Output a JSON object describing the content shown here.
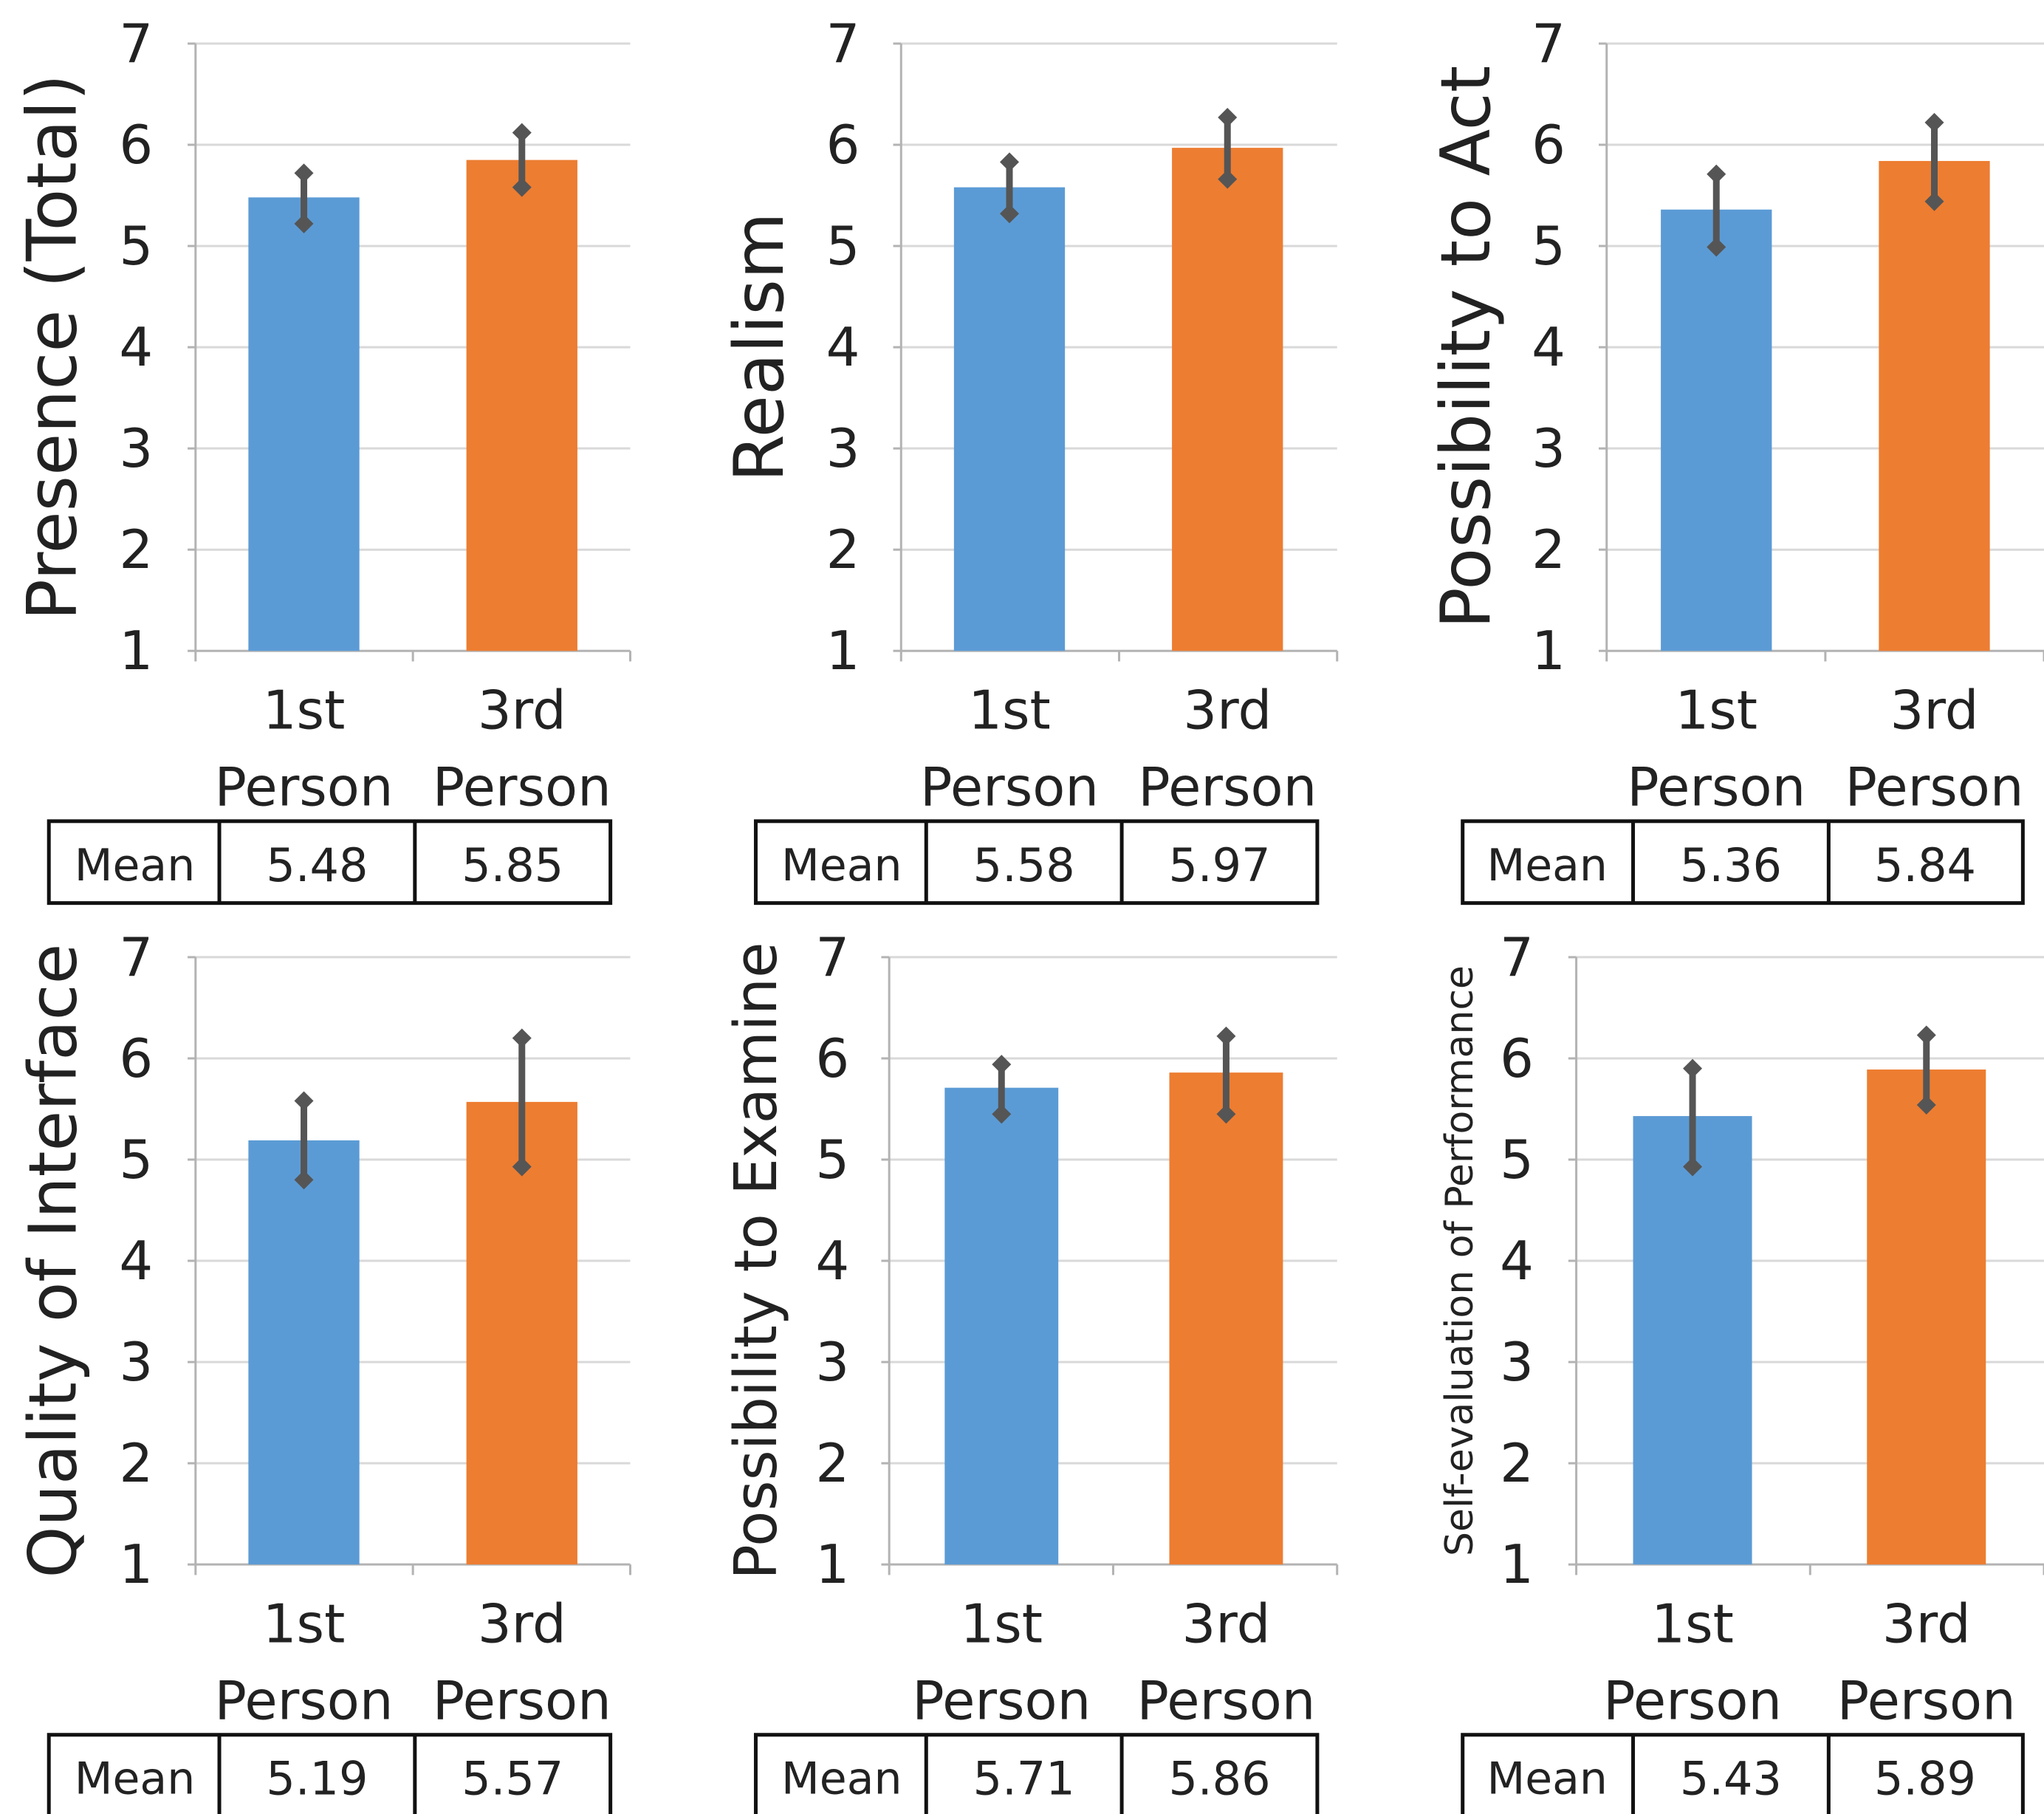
{
  "colors": {
    "first_person": "#5b9bd5",
    "third_person": "#ed7d31",
    "error_bar": "#555555"
  },
  "table_row_label": "Mean",
  "chart_data": [
    {
      "type": "bar",
      "ylabel": "Presence (Total)",
      "ylim": [
        1,
        7
      ],
      "yticks": [
        "1",
        "2",
        "3",
        "4",
        "5",
        "6",
        "7"
      ],
      "categories": [
        [
          "1st",
          "Person"
        ],
        [
          "3rd",
          "Person"
        ]
      ],
      "values": [
        5.48,
        5.85
      ],
      "mean_labels": [
        "5.48",
        "5.85"
      ],
      "errors": [
        [
          5.22,
          5.72
        ],
        [
          5.58,
          6.12
        ]
      ]
    },
    {
      "type": "bar",
      "ylabel": "Realism",
      "ylim": [
        1,
        7
      ],
      "yticks": [
        "1",
        "2",
        "3",
        "4",
        "5",
        "6",
        "7"
      ],
      "categories": [
        [
          "1st",
          "Person"
        ],
        [
          "3rd",
          "Person"
        ]
      ],
      "values": [
        5.58,
        5.97
      ],
      "mean_labels": [
        "5.58",
        "5.97"
      ],
      "errors": [
        [
          5.32,
          5.83
        ],
        [
          5.66,
          6.27
        ]
      ]
    },
    {
      "type": "bar",
      "ylabel": "Possibility to Act",
      "ylim": [
        1,
        7
      ],
      "yticks": [
        "1",
        "2",
        "3",
        "4",
        "5",
        "6",
        "7"
      ],
      "categories": [
        [
          "1st",
          "Person"
        ],
        [
          "3rd",
          "Person"
        ]
      ],
      "values": [
        5.36,
        5.84
      ],
      "mean_labels": [
        "5.36",
        "5.84"
      ],
      "errors": [
        [
          4.99,
          5.71
        ],
        [
          5.44,
          6.22
        ]
      ]
    },
    {
      "type": "bar",
      "ylabel": "Quality of Interface",
      "ylim": [
        1,
        7
      ],
      "yticks": [
        "1",
        "2",
        "3",
        "4",
        "5",
        "6",
        "7"
      ],
      "categories": [
        [
          "1st",
          "Person"
        ],
        [
          "3rd",
          "Person"
        ]
      ],
      "values": [
        5.19,
        5.57
      ],
      "mean_labels": [
        "5.19",
        "5.57"
      ],
      "errors": [
        [
          4.8,
          5.58
        ],
        [
          4.93,
          6.2
        ]
      ]
    },
    {
      "type": "bar",
      "ylabel": "Possibility to Examine",
      "ylim": [
        1,
        7
      ],
      "yticks": [
        "1",
        "2",
        "3",
        "4",
        "5",
        "6",
        "7"
      ],
      "categories": [
        [
          "1st",
          "Person"
        ],
        [
          "3rd",
          "Person"
        ]
      ],
      "values": [
        5.71,
        5.86
      ],
      "mean_labels": [
        "5.71",
        "5.86"
      ],
      "errors": [
        [
          5.45,
          5.94
        ],
        [
          5.45,
          6.22
        ]
      ]
    },
    {
      "type": "bar",
      "ylabel": "Self-evaluation of Performance",
      "ylim": [
        1,
        7
      ],
      "yticks": [
        "1",
        "2",
        "3",
        "4",
        "5",
        "6",
        "7"
      ],
      "categories": [
        [
          "1st",
          "Person"
        ],
        [
          "3rd",
          "Person"
        ]
      ],
      "values": [
        5.43,
        5.89
      ],
      "mean_labels": [
        "5.43",
        "5.89"
      ],
      "errors": [
        [
          4.93,
          5.9
        ],
        [
          5.54,
          6.23
        ]
      ]
    }
  ]
}
